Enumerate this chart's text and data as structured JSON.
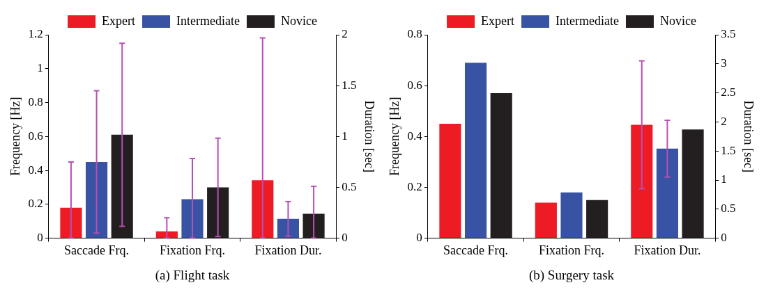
{
  "chart_data": [
    {
      "type": "bar",
      "title": "(a) Flight task",
      "ylabel": "Frequency [Hz]",
      "y2label": "Duration [sec]",
      "categories": [
        "Saccade Frq.",
        "Fixation Frq.",
        "Fixation Dur."
      ],
      "ylim": [
        0,
        1.2
      ],
      "yticks": [
        0,
        0.2,
        0.4,
        0.6,
        0.8,
        1,
        1.2
      ],
      "y2lim": [
        0,
        2
      ],
      "y2ticks": [
        0,
        0.5,
        1,
        1.5,
        2
      ],
      "legend": "top",
      "grid": false,
      "series": [
        {
          "name": "Expert",
          "color": "#ed1c24",
          "values": [
            0.18,
            0.04,
            null
          ],
          "errors": [
            [
              0,
              0.45
            ],
            [
              0,
              0.12
            ],
            null
          ]
        },
        {
          "name": "Intermediate",
          "color": "#3953a4",
          "values": [
            0.45,
            0.23,
            null
          ],
          "errors": [
            [
              0.03,
              0.87
            ],
            [
              0,
              0.47
            ],
            null
          ]
        },
        {
          "name": "Novice",
          "color": "#231f20",
          "values": [
            0.61,
            0.3,
            null
          ],
          "errors": [
            [
              0.07,
              1.15
            ],
            [
              0.01,
              0.59
            ],
            null
          ]
        },
        {
          "color": "#ed1c24",
          "axis": "y2",
          "values": [
            null,
            null,
            0.57
          ],
          "errors": [
            null,
            null,
            [
              0,
              1.97
            ]
          ]
        },
        {
          "color": "#3953a4",
          "axis": "y2",
          "values": [
            null,
            null,
            0.19
          ],
          "errors": [
            null,
            null,
            [
              0.02,
              0.36
            ]
          ]
        },
        {
          "color": "#231f20",
          "axis": "y2",
          "values": [
            null,
            null,
            0.24
          ],
          "errors": [
            null,
            null,
            [
              0,
              0.51
            ]
          ]
        }
      ]
    },
    {
      "type": "bar",
      "title": "(b) Surgery task",
      "ylabel": "Frequency [Hz]",
      "y2label": "Duration [sec]",
      "categories": [
        "Saccade Frq.",
        "Fixation Frq.",
        "Fixation Dur."
      ],
      "ylim": [
        0,
        0.8
      ],
      "yticks": [
        0,
        0.2,
        0.4,
        0.6,
        0.8
      ],
      "y2lim": [
        0,
        3.5
      ],
      "y2ticks": [
        0,
        0.5,
        1,
        1.5,
        2,
        2.5,
        3,
        3.5
      ],
      "legend": "top",
      "grid": false,
      "series": [
        {
          "name": "Expert",
          "color": "#ed1c24",
          "values": [
            0.45,
            0.14,
            null
          ]
        },
        {
          "name": "Intermediate",
          "color": "#3953a4",
          "values": [
            0.69,
            0.18,
            null
          ]
        },
        {
          "name": "Novice",
          "color": "#231f20",
          "values": [
            0.57,
            0.15,
            null
          ]
        },
        {
          "color": "#ed1c24",
          "axis": "y2",
          "values": [
            null,
            null,
            1.95
          ],
          "errors": [
            null,
            null,
            [
              0.85,
              3.05
            ]
          ]
        },
        {
          "color": "#3953a4",
          "axis": "y2",
          "values": [
            null,
            null,
            1.54
          ],
          "errors": [
            null,
            null,
            [
              1.05,
              2.03
            ]
          ]
        },
        {
          "color": "#231f20",
          "axis": "y2",
          "values": [
            null,
            null,
            1.87
          ]
        }
      ]
    }
  ]
}
